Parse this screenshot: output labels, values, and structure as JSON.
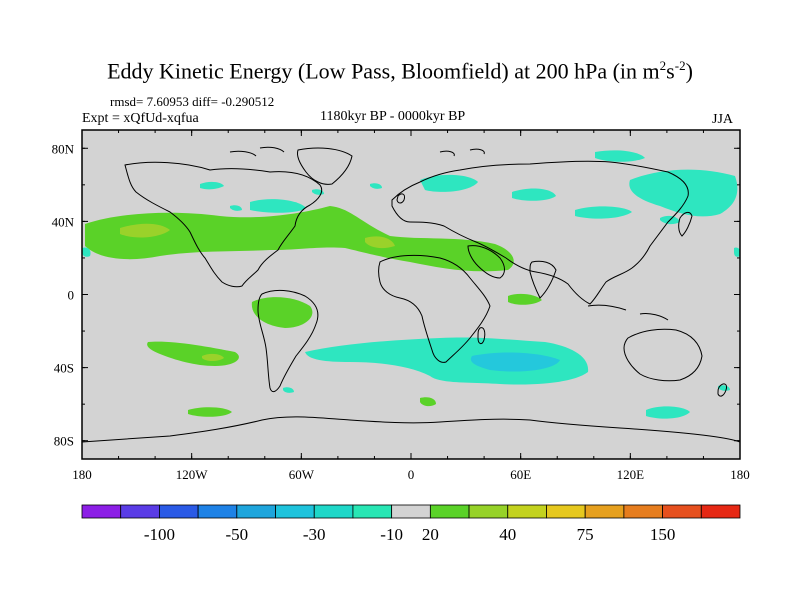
{
  "title": {
    "main": "Eddy Kinetic Energy (Low Pass, Bloomfield) at 200 hPa (in m",
    "sup1": "2",
    "mid": "s",
    "sup2": "-2",
    "close": ")"
  },
  "stats": "rmsd= 7.60953 diff= -0.290512",
  "experiment": "Expt = xQfUd-xqfua",
  "period": "1180kyr BP - 0000kyr BP",
  "season": "JJA",
  "map": {
    "projection": "cylindrical equidistant",
    "lon_range": [
      -180,
      180
    ],
    "lat_range": [
      -90,
      90
    ],
    "lat_ticks": [
      "80N",
      "40N",
      "0",
      "40S",
      "80S"
    ],
    "lon_ticks": [
      "180",
      "120W",
      "60W",
      "0",
      "60E",
      "120E",
      "180"
    ],
    "land_ocean_fill": "#d3d3d3"
  },
  "colorbar": {
    "colors": [
      "#8c1ee6",
      "#5a3ce6",
      "#2a5ae6",
      "#1e82e6",
      "#1ea5dc",
      "#1ec3dc",
      "#1ed7c8",
      "#28e6b4",
      "#d3d3d3",
      "#5ad228",
      "#96d228",
      "#c3d21e",
      "#e6c81e",
      "#e6a01e",
      "#e67d1e",
      "#e6501e",
      "#e62814"
    ],
    "labels": [
      "-100",
      "-50",
      "-30",
      "-10",
      "20",
      "40",
      "75",
      "150"
    ]
  },
  "palette": {
    "teal": "#2ee6c0",
    "cyan": "#24c8dc",
    "green": "#5ad228",
    "lightgreen": "#9ad22a"
  }
}
